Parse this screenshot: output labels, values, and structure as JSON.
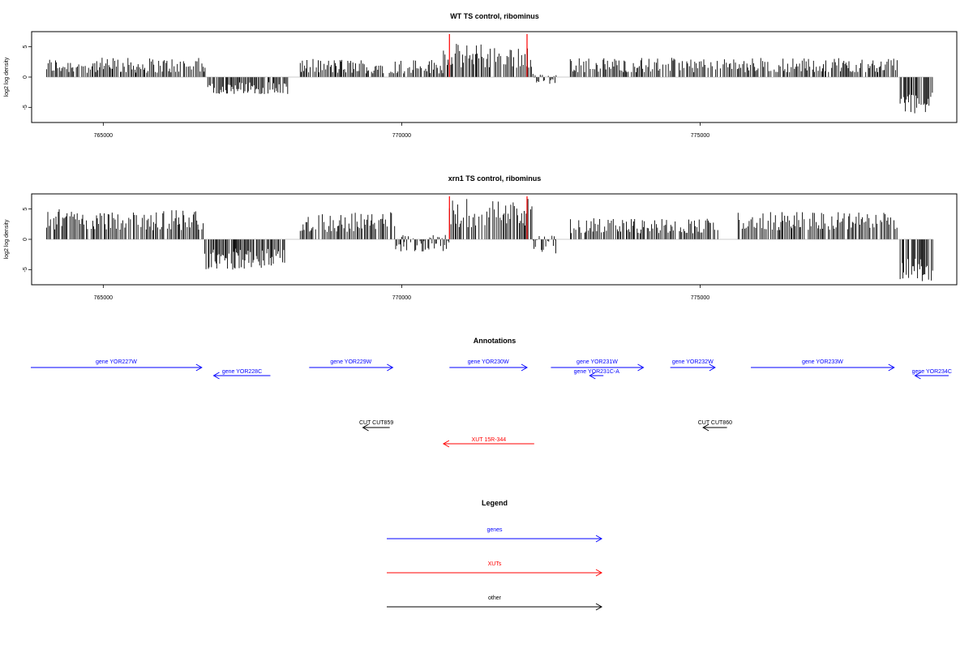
{
  "chart_data": {
    "type": "bar",
    "tracks": [
      {
        "title": "WT TS control, ribominus",
        "ylabel": "log2 log density",
        "ylim": [
          -7.5,
          7.5
        ],
        "yticks": [
          -5,
          0,
          5
        ],
        "xlim": [
          763800,
          779300
        ],
        "xticks": [
          765000,
          770000,
          775000
        ],
        "xtick_labels": [
          "765000",
          "770000",
          "775000"
        ],
        "highlight_x": [
          770800,
          772100
        ],
        "highlight_color": "#ff0000",
        "segments": [
          {
            "start": 764050,
            "end": 766750,
            "min": 0.7,
            "max": 3.2
          },
          {
            "start": 766750,
            "end": 768100,
            "min": -2.8,
            "max": -0.8
          },
          {
            "start": 768300,
            "end": 770700,
            "min": 0.6,
            "max": 3.0
          },
          {
            "start": 770700,
            "end": 772200,
            "min": 1.5,
            "max": 5.5
          },
          {
            "start": 772200,
            "end": 772600,
            "min": -1.2,
            "max": 0.6
          },
          {
            "start": 772800,
            "end": 778300,
            "min": 0.8,
            "max": 3.2
          },
          {
            "start": 778350,
            "end": 778900,
            "min": -6.0,
            "max": -2.5
          }
        ]
      },
      {
        "title": "xrn1 TS control, ribominus",
        "ylabel": "log2 log density",
        "ylim": [
          -7.5,
          7.5
        ],
        "yticks": [
          -5,
          0,
          5
        ],
        "xlim": [
          763800,
          779300
        ],
        "xticks": [
          765000,
          770000,
          775000
        ],
        "xtick_labels": [
          "765000",
          "770000",
          "775000"
        ],
        "highlight_x": [
          770800,
          772100
        ],
        "highlight_color": "#ff0000",
        "segments": [
          {
            "start": 764050,
            "end": 766700,
            "min": 1.5,
            "max": 5.0
          },
          {
            "start": 766700,
            "end": 768050,
            "min": -5.0,
            "max": -1.5
          },
          {
            "start": 768300,
            "end": 769900,
            "min": 1.2,
            "max": 4.5
          },
          {
            "start": 769900,
            "end": 770800,
            "min": -2.0,
            "max": 0.8
          },
          {
            "start": 770800,
            "end": 772200,
            "min": 2.0,
            "max": 7.0
          },
          {
            "start": 772200,
            "end": 772600,
            "min": -2.5,
            "max": 0.8
          },
          {
            "start": 772800,
            "end": 775300,
            "min": 1.0,
            "max": 3.5
          },
          {
            "start": 775600,
            "end": 778300,
            "min": 1.5,
            "max": 4.5
          },
          {
            "start": 778350,
            "end": 778900,
            "min": -7.0,
            "max": -3.0
          }
        ]
      }
    ]
  },
  "annotations": {
    "title": "Annotations",
    "features": [
      {
        "label": "gene YOR227W",
        "kind": "gene",
        "strand": "+",
        "start": 763200,
        "end": 766650,
        "row": 0
      },
      {
        "label": "gene YOR228C",
        "kind": "gene",
        "strand": "-",
        "start": 766850,
        "end": 767800,
        "row": 1
      },
      {
        "label": "gene YOR229W",
        "kind": "gene",
        "strand": "+",
        "start": 768450,
        "end": 769850,
        "row": 0
      },
      {
        "label": "gene YOR230W",
        "kind": "gene",
        "strand": "+",
        "start": 770800,
        "end": 772100,
        "row": 0
      },
      {
        "label": "gene YOR231W",
        "kind": "gene",
        "strand": "+",
        "start": 772500,
        "end": 774050,
        "row": 0
      },
      {
        "label": "gene YOR231C-A",
        "kind": "gene",
        "strand": "-",
        "start": 773150,
        "end": 773380,
        "row": 1
      },
      {
        "label": "gene YOR232W",
        "kind": "gene",
        "strand": "+",
        "start": 774500,
        "end": 775250,
        "row": 0
      },
      {
        "label": "gene YOR233W",
        "kind": "gene",
        "strand": "+",
        "start": 775850,
        "end": 778250,
        "row": 0
      },
      {
        "label": "gene YOR234C",
        "kind": "gene",
        "strand": "-",
        "start": 778600,
        "end": 779450,
        "row": 1
      },
      {
        "label": "CUT CUT859",
        "kind": "other",
        "strand": "-",
        "start": 769350,
        "end": 769800,
        "row": 2
      },
      {
        "label": "CUT CUT860",
        "kind": "other",
        "strand": "-",
        "start": 775050,
        "end": 775450,
        "row": 2
      },
      {
        "label": "XUT 15R-344",
        "kind": "xut",
        "strand": "-",
        "start": 770700,
        "end": 772220,
        "row": 3
      }
    ]
  },
  "legend": {
    "title": "Legend",
    "entries": [
      {
        "label": "genes",
        "kind": "gene"
      },
      {
        "label": "XUTs",
        "kind": "xut"
      },
      {
        "label": "other",
        "kind": "other"
      }
    ]
  },
  "colors": {
    "gene": "#0000ff",
    "xut": "#ff0000",
    "other": "#000000",
    "bars": "#000000",
    "highlight": "#ff0000"
  }
}
